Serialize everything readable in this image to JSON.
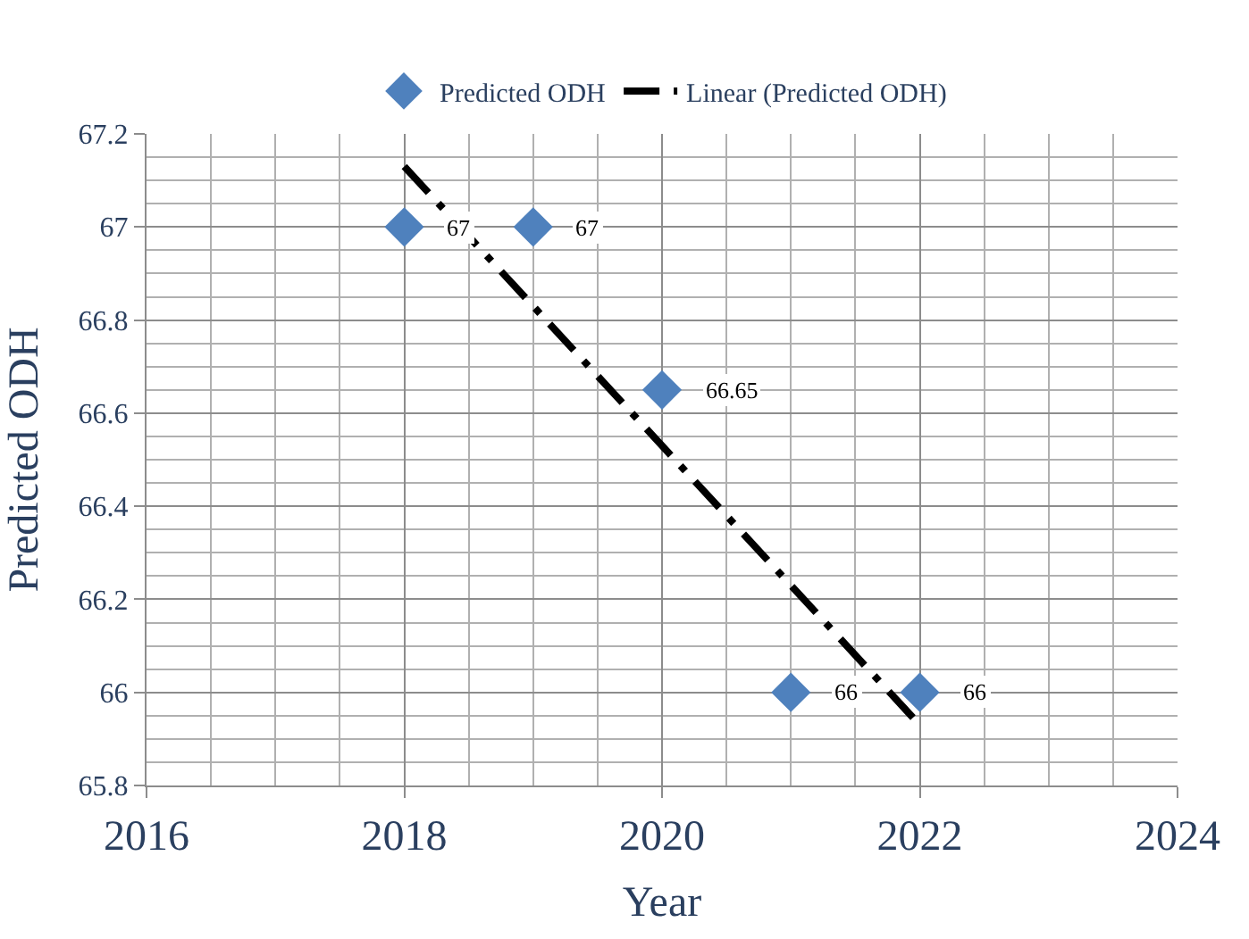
{
  "chart_data": {
    "type": "scatter",
    "xlabel": "Year",
    "ylabel": "Predicted ODH",
    "series": [
      {
        "name": "Predicted ODH",
        "color": "#4f81bd",
        "x": [
          2018,
          2019,
          2020,
          2021,
          2022
        ],
        "values": [
          67,
          67,
          66.65,
          66,
          66
        ],
        "marker": "diamond",
        "data_labels": true
      },
      {
        "name": "Linear (Predicted ODH)",
        "type": "line",
        "color": "#000000",
        "x": [
          2018,
          2022
        ],
        "values": [
          67.13,
          65.93
        ],
        "marker": "none",
        "line_style": "dashed"
      }
    ],
    "xlim": [
      2016,
      2024
    ],
    "xticks": [
      2016,
      2018,
      2020,
      2022,
      2024
    ],
    "ylim": [
      65.8,
      67.2
    ],
    "yticks": [
      65.8,
      66,
      66.2,
      66.4,
      66.6,
      66.8,
      67,
      67.2
    ],
    "grid": true,
    "legend": "top"
  }
}
